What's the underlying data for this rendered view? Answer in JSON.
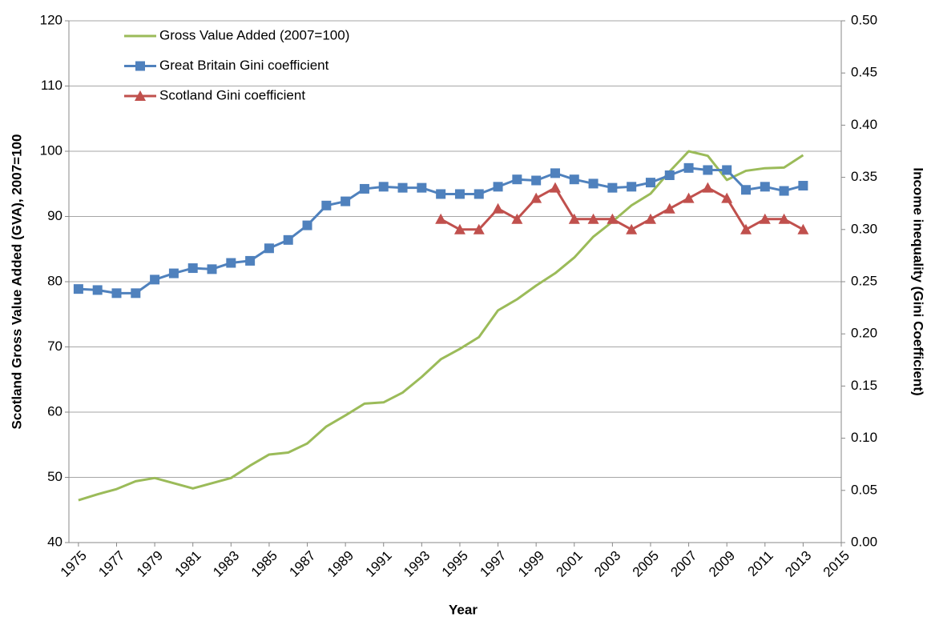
{
  "chart_data": {
    "type": "line",
    "x_label": "Year",
    "y_label": "Scotland Gross Value Added (GVA), 2007=100",
    "y2_label": "Income inequality (Gini Coefficient)",
    "x": [
      1975,
      1976,
      1977,
      1978,
      1979,
      1980,
      1981,
      1982,
      1983,
      1984,
      1985,
      1986,
      1987,
      1988,
      1989,
      1990,
      1991,
      1992,
      1993,
      1994,
      1995,
      1996,
      1997,
      1998,
      1999,
      2000,
      2001,
      2002,
      2003,
      2004,
      2005,
      2006,
      2007,
      2008,
      2009,
      2010,
      2011,
      2012,
      2013
    ],
    "series": [
      {
        "name": "Gross Value Added (2007=100)",
        "color": "#9bbb59",
        "marker": "none",
        "values": [
          46.5,
          47.4,
          48.2,
          49.4,
          49.9,
          49.1,
          48.3,
          49.1,
          49.9,
          51.8,
          53.5,
          53.8,
          55.2,
          57.8,
          59.5,
          61.3,
          61.5,
          63.0,
          65.4,
          68.1,
          69.7,
          71.5,
          75.6,
          77.3,
          79.4,
          81.3,
          83.7,
          86.9,
          89.2,
          91.7,
          93.5,
          96.9,
          100,
          99.3,
          95.6,
          97.0,
          97.4,
          97.5,
          99.4
        ]
      },
      {
        "name": "Great Britain Gini coefficient",
        "color": "#4f81bd",
        "marker": "square",
        "axis": "y2",
        "values": [
          0.243,
          0.242,
          0.239,
          0.239,
          0.252,
          0.258,
          0.263,
          0.262,
          0.268,
          0.27,
          0.282,
          0.29,
          0.304,
          0.323,
          0.327,
          0.339,
          0.341,
          0.34,
          0.34,
          0.334,
          0.334,
          0.334,
          0.341,
          0.348,
          0.347,
          0.354,
          0.348,
          0.344,
          0.34,
          0.341,
          0.345,
          0.352,
          0.359,
          0.357,
          0.357,
          0.338,
          0.341,
          0.337,
          0.342
        ]
      },
      {
        "name": "Scotland Gini coefficient",
        "color": "#c0504d",
        "marker": "triangle",
        "axis": "y2",
        "values": [
          null,
          null,
          null,
          null,
          null,
          null,
          null,
          null,
          null,
          null,
          null,
          null,
          null,
          null,
          null,
          null,
          null,
          null,
          null,
          0.31,
          0.3,
          0.3,
          0.32,
          0.31,
          0.33,
          0.34,
          0.31,
          0.31,
          0.31,
          0.3,
          0.31,
          0.32,
          0.33,
          0.34,
          0.33,
          0.3,
          0.31,
          0.31,
          0.3
        ]
      }
    ],
    "xlim": [
      1974.5,
      2015
    ],
    "xticks": [
      1975,
      1977,
      1979,
      1981,
      1983,
      1985,
      1987,
      1989,
      1991,
      1993,
      1995,
      1997,
      1999,
      2001,
      2003,
      2005,
      2007,
      2009,
      2011,
      2013,
      2015
    ],
    "ylim": [
      40,
      120
    ],
    "yticks": [
      40,
      50,
      60,
      70,
      80,
      90,
      100,
      110,
      120
    ],
    "y2lim": [
      0,
      0.5
    ],
    "y2ticks": [
      {
        "value": 0,
        "label": "0.00"
      },
      0.05,
      {
        "value": 0.1,
        "label": "0.10"
      },
      0.15,
      {
        "value": 0.2,
        "label": "0.20"
      },
      0.25,
      {
        "value": 0.3,
        "label": "0.30"
      },
      0.35,
      {
        "value": 0.4,
        "label": "0.40"
      },
      0.45,
      {
        "value": 0.5,
        "label": "0.50"
      }
    ],
    "grid": true,
    "legend": "top-left"
  }
}
